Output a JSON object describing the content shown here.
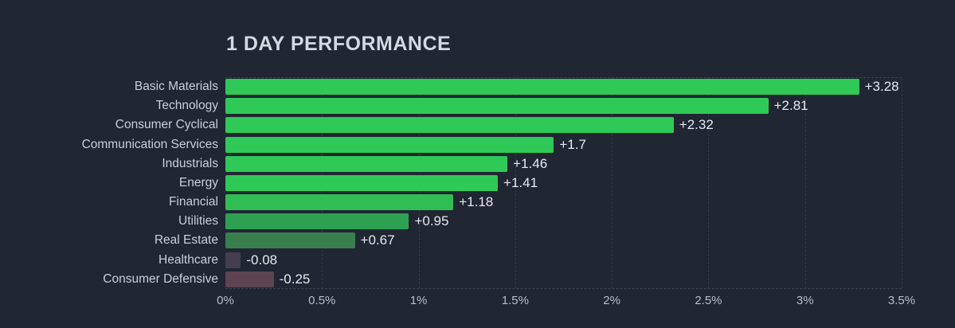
{
  "page": {
    "background": "#212633"
  },
  "header": {
    "title": "1 DAY PERFORMANCE"
  },
  "chart_data": {
    "type": "bar",
    "orientation": "horizontal",
    "title": "1 DAY PERFORMANCE",
    "categories": [
      "Basic Materials",
      "Technology",
      "Consumer Cyclical",
      "Communication Services",
      "Industrials",
      "Energy",
      "Financial",
      "Utilities",
      "Real Estate",
      "Healthcare",
      "Consumer Defensive"
    ],
    "values": [
      3.28,
      2.81,
      2.32,
      1.7,
      1.46,
      1.41,
      1.18,
      0.95,
      0.67,
      -0.08,
      -0.25
    ],
    "value_labels": [
      "+3.28",
      "+2.81",
      "+2.32",
      "+1.7",
      "+1.46",
      "+1.41",
      "+1.18",
      "+0.95",
      "+0.67",
      "-0.08",
      "-0.25"
    ],
    "bar_colors": [
      "#2fc957",
      "#2fc957",
      "#2fc957",
      "#2fc957",
      "#2fc957",
      "#2fc957",
      "#2fbd54",
      "#2da151",
      "#397f4e",
      "#443e4e",
      "#5e4350"
    ],
    "x_ticks": [
      "0%",
      "0.5%",
      "1%",
      "1.5%",
      "2%",
      "2.5%",
      "3%",
      "3.5%"
    ],
    "x_tick_values": [
      0,
      0.5,
      1,
      1.5,
      2,
      2.5,
      3,
      3.5
    ],
    "xlim": [
      0,
      3.5
    ],
    "xlabel": "",
    "ylabel": "",
    "grid": "dashed-vertical",
    "legend": "none",
    "colors": {
      "background": "#212633",
      "positive_bright": "#2fc957",
      "positive_medium": "#2da151",
      "positive_muted": "#397f4e",
      "negative_weak": "#443e4e",
      "negative": "#5e4350",
      "gridline": "#333948",
      "category_text": "#c9ceda",
      "value_text": "#e6e9f0",
      "tick_text": "#b7bdca",
      "title_text": "#d4d8e1"
    }
  }
}
